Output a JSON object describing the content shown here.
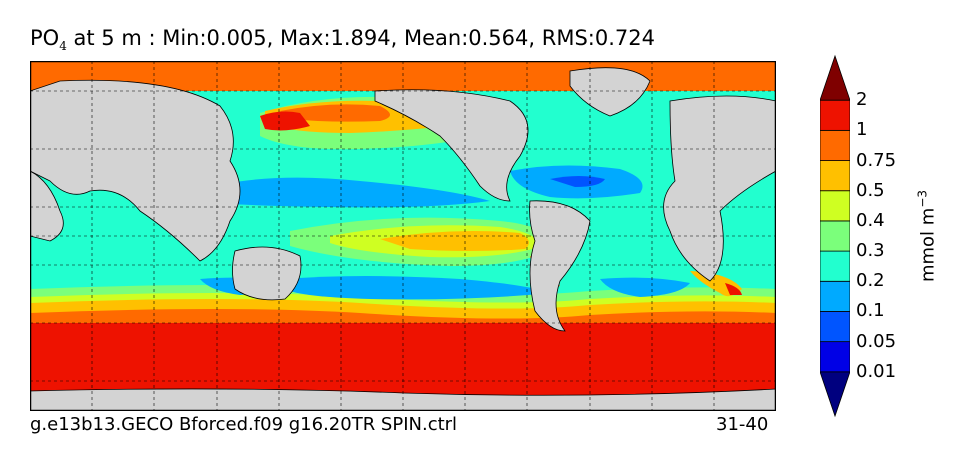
{
  "title": {
    "var": "PO",
    "sub": "4",
    "rest": "  at 5 m : Min:0.005, Max:1.894, Mean:0.564, RMS:0.724"
  },
  "footer": {
    "case": "g.e13b13.GECO Bforced.f09 g16.20TR SPIN.ctrl",
    "years": "31-40"
  },
  "colorbar": {
    "unit": "mmol m",
    "unit_exp": "−3",
    "levels": [
      "0.01",
      "0.05",
      "0.1",
      "0.2",
      "0.3",
      "0.4",
      "0.5",
      "0.75",
      "1",
      "2"
    ],
    "colors": [
      "#00007f",
      "#0000e6",
      "#0055ff",
      "#00aaff",
      "#22ffcf",
      "#7bff7b",
      "#cfff22",
      "#ffc000",
      "#ff6a00",
      "#ee1200",
      "#7f0000"
    ]
  },
  "map_colors": {
    "land": "#d3d3d3",
    "lowest": "#00aaff",
    "low": "#22ffcf",
    "mid": "#7bff7b",
    "midhigh": "#cfff22",
    "high": "#ffc000",
    "higher": "#ff6a00",
    "max": "#ee1200",
    "deep": "#0055ff"
  }
}
